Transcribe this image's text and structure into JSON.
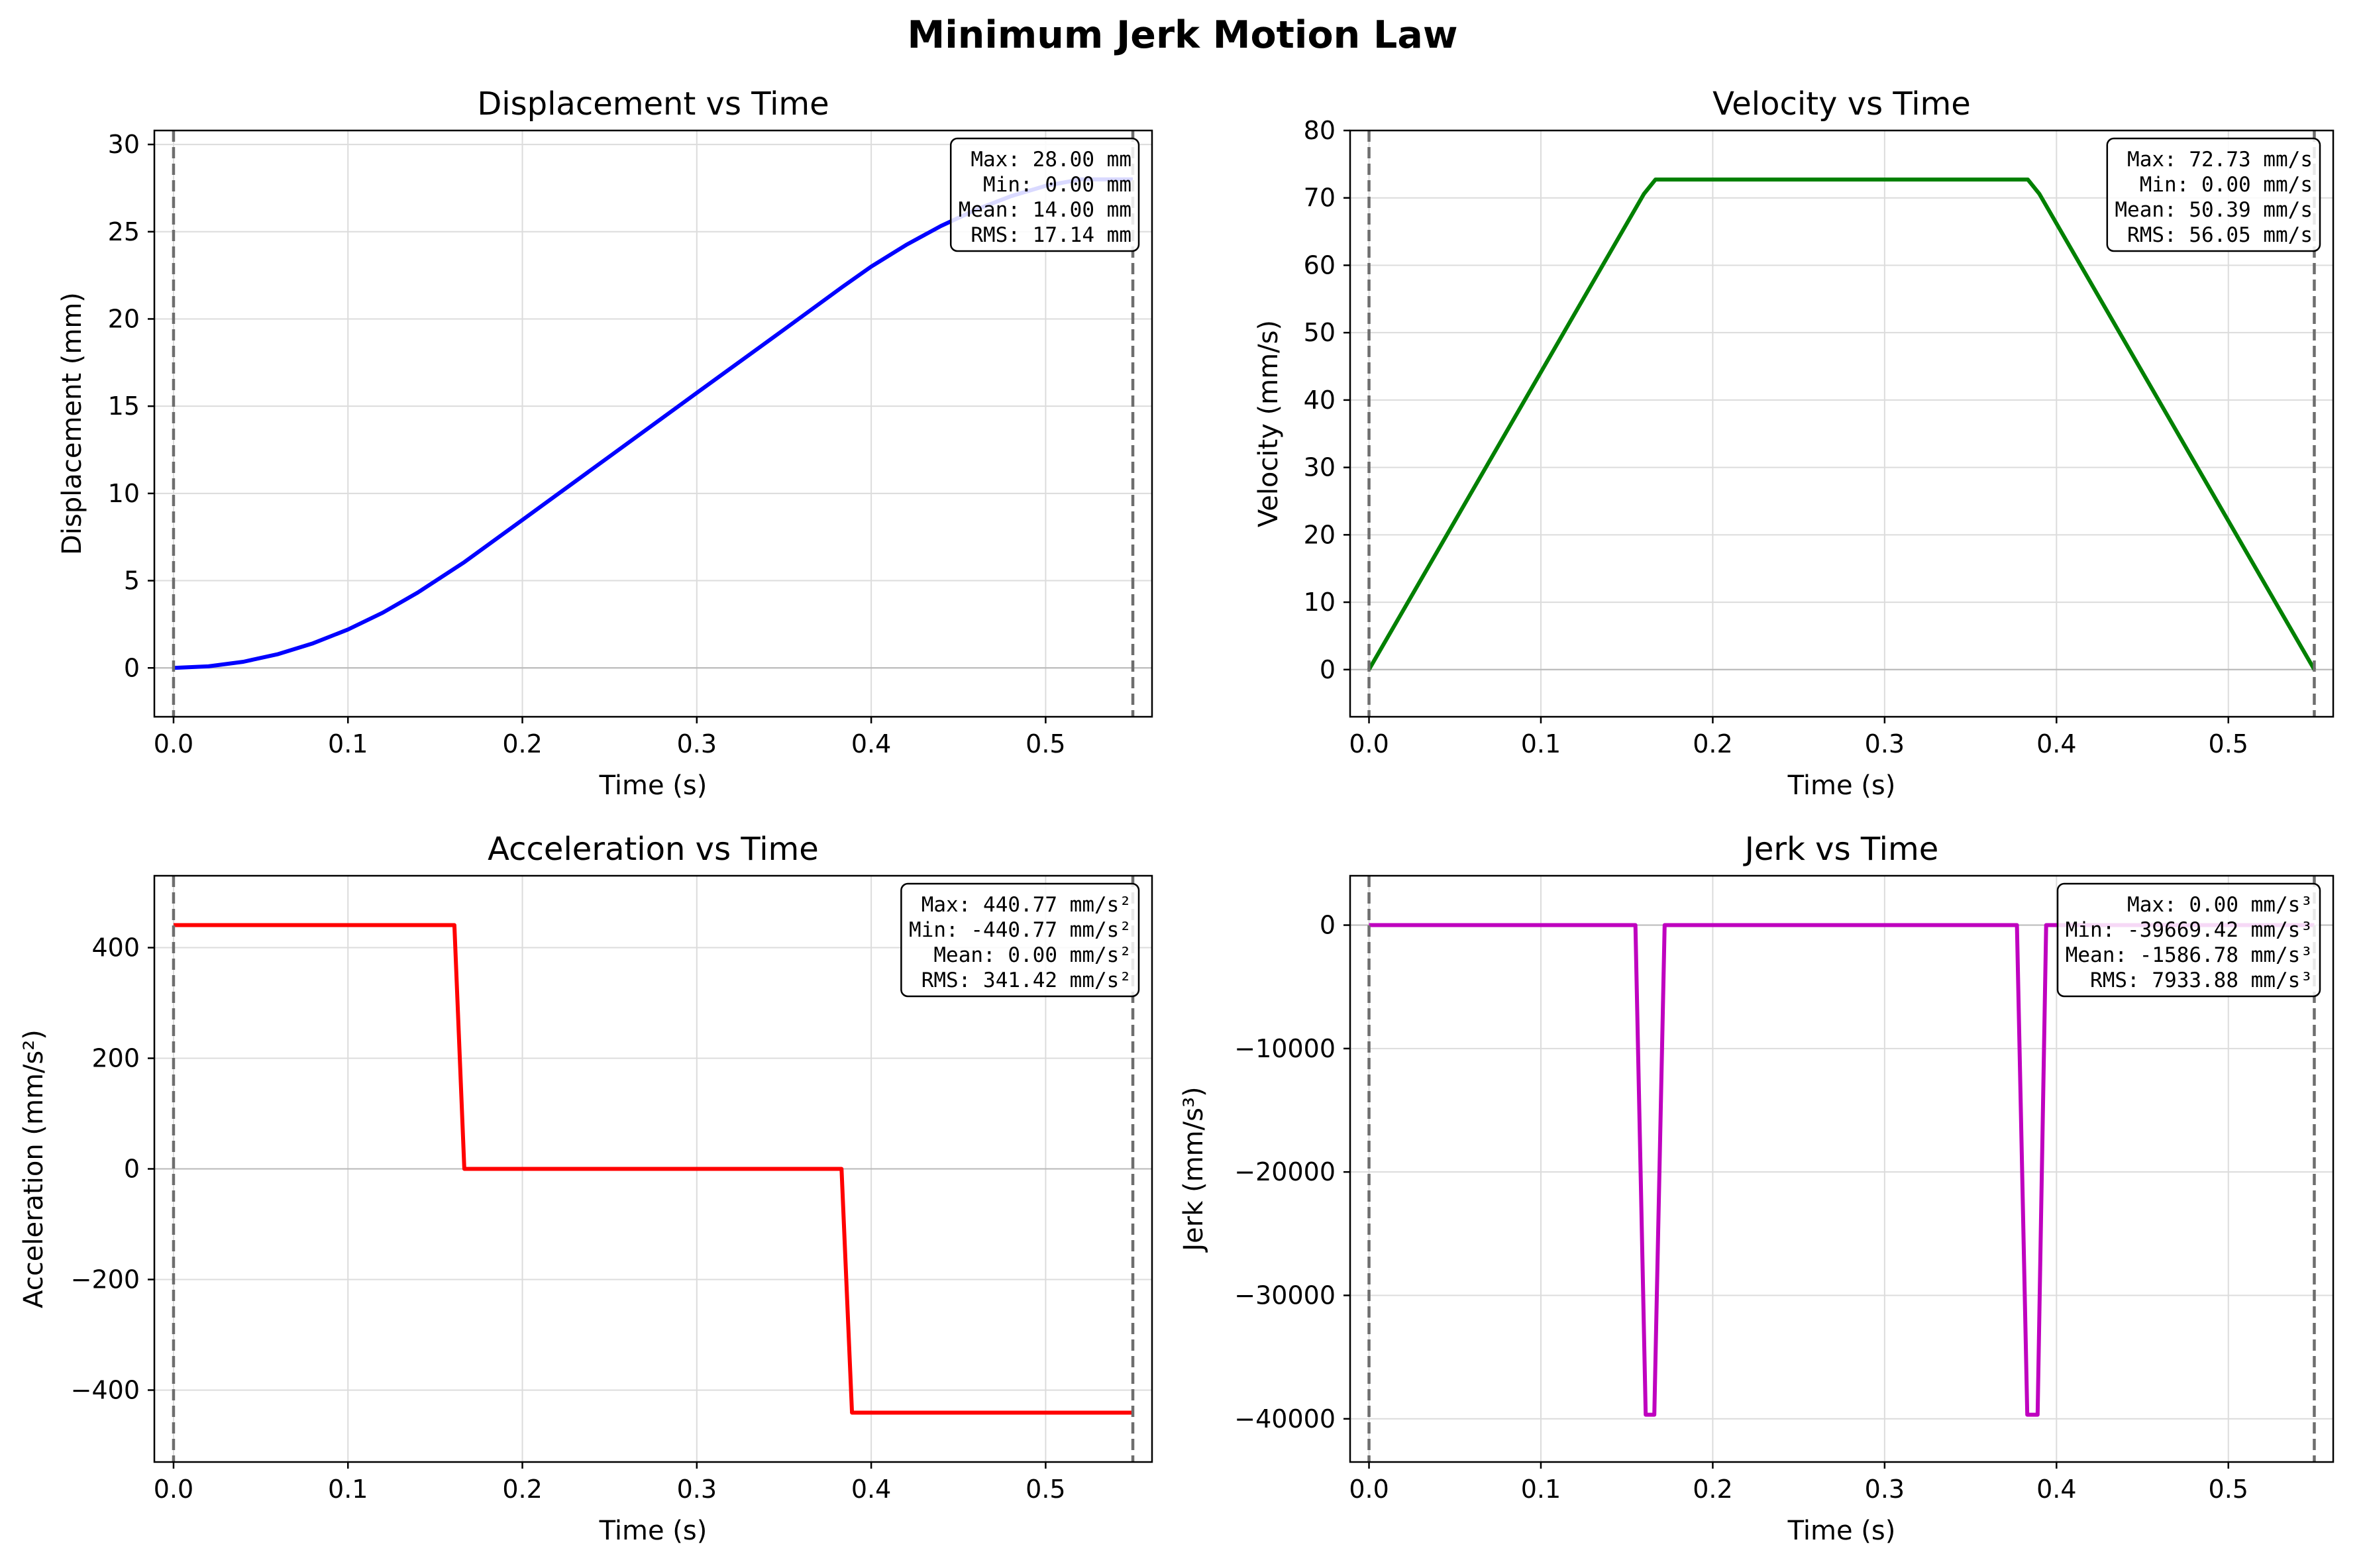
{
  "figure_title": "Minimum Jerk Motion Law",
  "chart_data": [
    {
      "type": "line",
      "title": "Displacement vs Time",
      "xlabel": "Time (s)",
      "ylabel": "Displacement (mm)",
      "color": "#0000ff",
      "xlim": [
        -0.011,
        0.561
      ],
      "ylim": [
        -2.8,
        30.8
      ],
      "xticks": [
        "0.0",
        "0.1",
        "0.2",
        "0.3",
        "0.4",
        "0.5"
      ],
      "xtick_values": [
        0,
        0.1,
        0.2,
        0.3,
        0.4,
        0.5
      ],
      "yticks": [
        "0",
        "5",
        "10",
        "15",
        "20",
        "25",
        "30"
      ],
      "ytick_values": [
        0,
        5,
        10,
        15,
        20,
        25,
        30
      ],
      "vlines": [
        0,
        0.55
      ],
      "x": [
        0,
        0.02,
        0.04,
        0.06,
        0.08,
        0.1,
        0.12,
        0.14,
        0.1667,
        0.2,
        0.25,
        0.3,
        0.35,
        0.3833,
        0.4,
        0.42,
        0.44,
        0.46,
        0.48,
        0.5,
        0.52,
        0.54,
        0.55
      ],
      "y": [
        0,
        0.09,
        0.35,
        0.79,
        1.41,
        2.2,
        3.17,
        4.32,
        6.06,
        8.48,
        12.12,
        15.76,
        19.39,
        21.82,
        23.0,
        24.24,
        25.33,
        26.26,
        27.03,
        27.63,
        28.0,
        28.0,
        28.0
      ],
      "stats": [
        "Max: 28.00 mm",
        "Min: 0.00 mm",
        "Mean: 14.00 mm",
        "RMS: 17.14 mm"
      ]
    },
    {
      "type": "line",
      "title": "Velocity vs Time",
      "xlabel": "Time (s)",
      "ylabel": "Velocity (mm/s)",
      "color": "#008000",
      "xlim": [
        -0.011,
        0.561
      ],
      "ylim": [
        -7,
        80
      ],
      "xticks": [
        "0.0",
        "0.1",
        "0.2",
        "0.3",
        "0.4",
        "0.5"
      ],
      "xtick_values": [
        0,
        0.1,
        0.2,
        0.3,
        0.4,
        0.5
      ],
      "yticks": [
        "0",
        "10",
        "20",
        "30",
        "40",
        "50",
        "60",
        "70",
        "80"
      ],
      "ytick_values": [
        0,
        10,
        20,
        30,
        40,
        50,
        60,
        70,
        80
      ],
      "vlines": [
        0,
        0.55
      ],
      "x": [
        0,
        0.16,
        0.1667,
        0.3833,
        0.39,
        0.55
      ],
      "y": [
        0,
        70.6,
        72.73,
        72.73,
        70.6,
        0
      ],
      "stats": [
        "Max: 72.73 mm/s",
        "Min: 0.00 mm/s",
        "Mean: 50.39 mm/s",
        "RMS: 56.05 mm/s"
      ]
    },
    {
      "type": "line",
      "title": "Acceleration vs Time",
      "xlabel": "Time (s)",
      "ylabel": "Acceleration (mm/s²)",
      "color": "#ff0000",
      "xlim": [
        -0.011,
        0.561
      ],
      "ylim": [
        -530,
        530
      ],
      "xticks": [
        "0.0",
        "0.1",
        "0.2",
        "0.3",
        "0.4",
        "0.5"
      ],
      "xtick_values": [
        0,
        0.1,
        0.2,
        0.3,
        0.4,
        0.5
      ],
      "yticks": [
        "−400",
        "−200",
        "0",
        "200",
        "400"
      ],
      "ytick_values": [
        -400,
        -200,
        0,
        200,
        400
      ],
      "vlines": [
        0,
        0.55
      ],
      "x": [
        0,
        0.161,
        0.1667,
        0.383,
        0.389,
        0.55
      ],
      "y": [
        440.77,
        440.77,
        0,
        0,
        -440.77,
        -440.77
      ],
      "stats": [
        "Max: 440.77 mm/s²",
        "Min: -440.77 mm/s²",
        "Mean: 0.00 mm/s²",
        "RMS: 341.42 mm/s²"
      ]
    },
    {
      "type": "line",
      "title": "Jerk vs Time",
      "xlabel": "Time (s)",
      "ylabel": "Jerk (mm/s³)",
      "color": "#bf00bf",
      "xlim": [
        -0.011,
        0.561
      ],
      "ylim": [
        -43500,
        4000
      ],
      "xticks": [
        "0.0",
        "0.1",
        "0.2",
        "0.3",
        "0.4",
        "0.5"
      ],
      "xtick_values": [
        0,
        0.1,
        0.2,
        0.3,
        0.4,
        0.5
      ],
      "yticks": [
        "−40000",
        "−30000",
        "−20000",
        "−10000",
        "0"
      ],
      "ytick_values": [
        -40000,
        -30000,
        -20000,
        -10000,
        0
      ],
      "vlines": [
        0,
        0.55
      ],
      "x": [
        0,
        0.155,
        0.161,
        0.166,
        0.172,
        0.377,
        0.383,
        0.389,
        0.394,
        0.55
      ],
      "y": [
        0,
        0,
        -39669.42,
        -39669.42,
        0,
        0,
        -39669.42,
        -39669.42,
        0,
        0
      ],
      "stats": [
        "Max: 0.00 mm/s³",
        "Min: -39669.42 mm/s³",
        "Mean: -1586.78 mm/s³",
        "RMS: 7933.88 mm/s³"
      ]
    }
  ]
}
